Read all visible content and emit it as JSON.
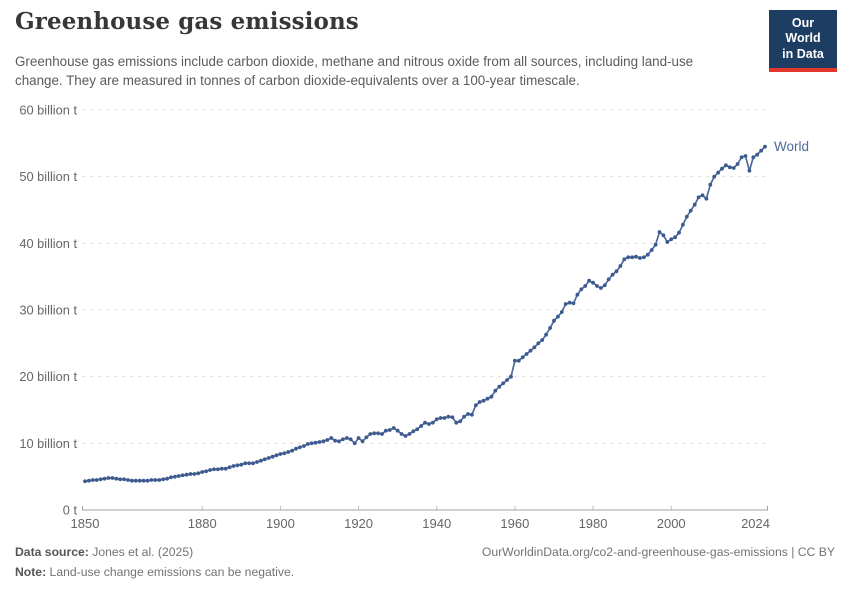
{
  "header": {
    "title": "Greenhouse gas emissions",
    "logo": {
      "line1": "Our World",
      "line2": "in Data"
    }
  },
  "subtitle": "Greenhouse gas emissions include carbon dioxide, methane and nitrous oxide from all sources, including land-use change. They are measured in tonnes of carbon dioxide-equivalents over a 100-year timescale.",
  "chart_data": {
    "type": "line",
    "title": "Greenhouse gas emissions",
    "unit": "billion tonnes of CO2-equivalents",
    "xlim": [
      1850,
      2024
    ],
    "ylim": [
      0,
      60
    ],
    "grid": "horizontal-dashed",
    "legend_position": "line-end-label",
    "xticks": [
      1850,
      1880,
      1900,
      1920,
      1940,
      1960,
      1980,
      2000,
      2024
    ],
    "yticks": [
      {
        "value": 0,
        "label": "0 t"
      },
      {
        "value": 10,
        "label": "10 billion t"
      },
      {
        "value": 20,
        "label": "20 billion t"
      },
      {
        "value": 30,
        "label": "30 billion t"
      },
      {
        "value": 40,
        "label": "40 billion t"
      },
      {
        "value": 50,
        "label": "50 billion t"
      },
      {
        "value": 60,
        "label": "60 billion t"
      }
    ],
    "x": {
      "start": 1850,
      "end": 2024,
      "step": 1
    },
    "series": [
      {
        "name": "World",
        "values": [
          4.3,
          4.4,
          4.5,
          4.5,
          4.6,
          4.7,
          4.8,
          4.8,
          4.7,
          4.6,
          4.6,
          4.5,
          4.4,
          4.4,
          4.4,
          4.4,
          4.4,
          4.5,
          4.5,
          4.5,
          4.6,
          4.7,
          4.9,
          5.0,
          5.1,
          5.2,
          5.3,
          5.4,
          5.4,
          5.5,
          5.7,
          5.8,
          6.0,
          6.1,
          6.1,
          6.2,
          6.2,
          6.4,
          6.6,
          6.7,
          6.8,
          7.0,
          7.0,
          7.0,
          7.2,
          7.4,
          7.6,
          7.8,
          8.0,
          8.2,
          8.4,
          8.5,
          8.7,
          8.9,
          9.2,
          9.4,
          9.6,
          9.9,
          10.0,
          10.1,
          10.2,
          10.3,
          10.5,
          10.8,
          10.4,
          10.3,
          10.6,
          10.8,
          10.6,
          10.0,
          10.8,
          10.3,
          10.9,
          11.4,
          11.5,
          11.5,
          11.4,
          11.9,
          12.0,
          12.3,
          11.9,
          11.4,
          11.1,
          11.4,
          11.8,
          12.1,
          12.6,
          13.1,
          12.9,
          13.1,
          13.6,
          13.8,
          13.8,
          14.0,
          13.9,
          13.1,
          13.3,
          14.0,
          14.4,
          14.3,
          15.7,
          16.2,
          16.4,
          16.7,
          17.0,
          17.9,
          18.5,
          19.0,
          19.5,
          20.0,
          22.4,
          22.4,
          22.9,
          23.4,
          23.9,
          24.4,
          25.0,
          25.5,
          26.3,
          27.3,
          28.4,
          29.0,
          29.7,
          30.9,
          31.1,
          31.0,
          32.3,
          33.1,
          33.6,
          34.4,
          34.1,
          33.6,
          33.3,
          33.7,
          34.6,
          35.3,
          35.8,
          36.6,
          37.6,
          37.9,
          37.9,
          38.0,
          37.8,
          37.9,
          38.3,
          39.0,
          39.8,
          41.7,
          41.2,
          40.2,
          40.6,
          40.9,
          41.6,
          42.8,
          44.0,
          44.9,
          45.8,
          46.9,
          47.2,
          46.7,
          48.8,
          50.0,
          50.6,
          51.2,
          51.7,
          51.4,
          51.3,
          51.9,
          52.9,
          53.1,
          50.9,
          52.9,
          53.3,
          53.9,
          54.5
        ]
      }
    ]
  },
  "colors": {
    "line": "#4C6A9C",
    "dot": "#3D5A8F",
    "series_label": "#4C6A9C",
    "grid": "#DCDCDC",
    "axis": "#A1A1A1",
    "tick": "#BBBBBB",
    "axis_text": "#666666",
    "logo_bg": "#1D3D63",
    "logo_accent": "#E0362C",
    "title_text": "#373737",
    "subtitle_text": "#5B5B5B"
  },
  "footer": {
    "source_label": "Data source:",
    "source_value": "Jones et al. (2025)",
    "attribution": "OurWorldinData.org/co2-and-greenhouse-gas-emissions | CC BY",
    "note_label": "Note:",
    "note_value": "Land-use change emissions can be negative."
  }
}
